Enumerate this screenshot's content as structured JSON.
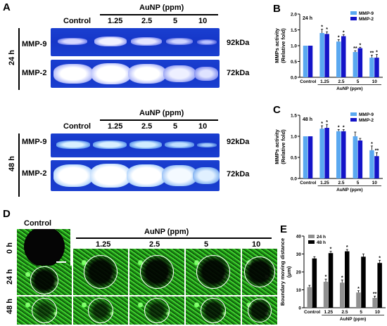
{
  "panels": {
    "a": "A",
    "b": "B",
    "c": "C",
    "d": "D",
    "e": "E"
  },
  "gel": {
    "control_label": "Control",
    "treatment_label": "AuNP (ppm)",
    "doses": [
      "1.25",
      "2.5",
      "5",
      "10"
    ],
    "time_24": "24 h",
    "time_48": "48 h",
    "mmp9": "MMP-9",
    "mmp2": "MMP-2",
    "kda_92": "92kDa",
    "kda_72": "72kDa"
  },
  "wound": {
    "control_label": "Control",
    "treatment_label": "AuNP (ppm)",
    "doses": [
      "1.25",
      "2.5",
      "5",
      "10"
    ],
    "row_labels": [
      "0 h",
      "24 h",
      "48 h"
    ]
  },
  "colors": {
    "mmp9_bar": "#5aa8f0",
    "mmp2_bar": "#1414c8",
    "h24_bar": "#909090",
    "h48_bar": "#000000",
    "gel_blue": "#1536c8"
  },
  "chart_data": [
    {
      "type": "bar",
      "panel": "B",
      "annotation": "24 h",
      "categories": [
        "Control",
        "1.25",
        "2.5",
        "5",
        "10"
      ],
      "series": [
        {
          "name": "MMP-9",
          "values": [
            1.0,
            1.4,
            1.13,
            0.8,
            0.62
          ],
          "errors": [
            0,
            0.12,
            0.06,
            0.04,
            0.08
          ]
        },
        {
          "name": "MMP-2",
          "values": [
            1.0,
            1.37,
            1.3,
            0.92,
            0.62
          ],
          "errors": [
            0,
            0.07,
            0.05,
            0.03,
            0.1
          ]
        }
      ],
      "significance": [
        [
          "",
          ""
        ],
        [
          "*",
          "*"
        ],
        [
          "*",
          "*"
        ],
        [
          "**",
          "*"
        ],
        [
          "**",
          "*"
        ]
      ],
      "xlabel": "AuNP (ppm)",
      "ylabel": "MMPs activity",
      "ylabel2": "(Relative fold)",
      "ylim": [
        0,
        2.0
      ],
      "yticks": [
        "0.0",
        "0.5",
        "1.0",
        "1.5",
        "2.0"
      ],
      "legend": "top-right"
    },
    {
      "type": "bar",
      "panel": "C",
      "annotation": "48 h",
      "categories": [
        "Control",
        "1.25",
        "2.5",
        "5",
        "10"
      ],
      "series": [
        {
          "name": "MMP-9",
          "values": [
            1.0,
            1.18,
            1.12,
            1.0,
            0.67
          ],
          "errors": [
            0,
            0.07,
            0.04,
            0.1,
            0.1
          ]
        },
        {
          "name": "MMP-2",
          "values": [
            1.0,
            1.2,
            1.12,
            0.9,
            0.53
          ],
          "errors": [
            0,
            0.08,
            0.04,
            0.05,
            0.08
          ]
        }
      ],
      "significance": [
        [
          "",
          ""
        ],
        [
          "*",
          "*"
        ],
        [
          "*",
          "*"
        ],
        [
          "",
          ""
        ],
        [
          "*",
          "**"
        ]
      ],
      "xlabel": "AuNP (ppm)",
      "ylabel": "MMPs activity",
      "ylabel2": "(Relative fold)",
      "ylim": [
        0,
        1.5
      ],
      "yticks": [
        "0.0",
        "0.5",
        "1.0",
        "1.5"
      ],
      "legend": "top-right"
    },
    {
      "type": "bar",
      "panel": "E",
      "categories": [
        "Control",
        "1.25",
        "2.5",
        "5",
        "10"
      ],
      "series": [
        {
          "name": "24 h",
          "values": [
            11.5,
            14.5,
            14,
            8.5,
            5.5
          ],
          "errors": [
            1,
            1.5,
            1.5,
            1,
            1
          ]
        },
        {
          "name": "48 h",
          "values": [
            27.5,
            30.5,
            31.5,
            28.5,
            25
          ],
          "errors": [
            1,
            1,
            1,
            1.5,
            1.5
          ]
        }
      ],
      "significance": [
        [
          "",
          ""
        ],
        [
          "*",
          "*"
        ],
        [
          "*",
          "*"
        ],
        [
          "*",
          ""
        ],
        [
          "**",
          "*"
        ]
      ],
      "xlabel": "AuNP (ppm)",
      "ylabel": "Boundary moving distance",
      "ylabel2": "(μm)",
      "ylim": [
        0,
        40
      ],
      "yticks": [
        "0",
        "10",
        "20",
        "30",
        "40"
      ],
      "legend": "top-left"
    }
  ]
}
